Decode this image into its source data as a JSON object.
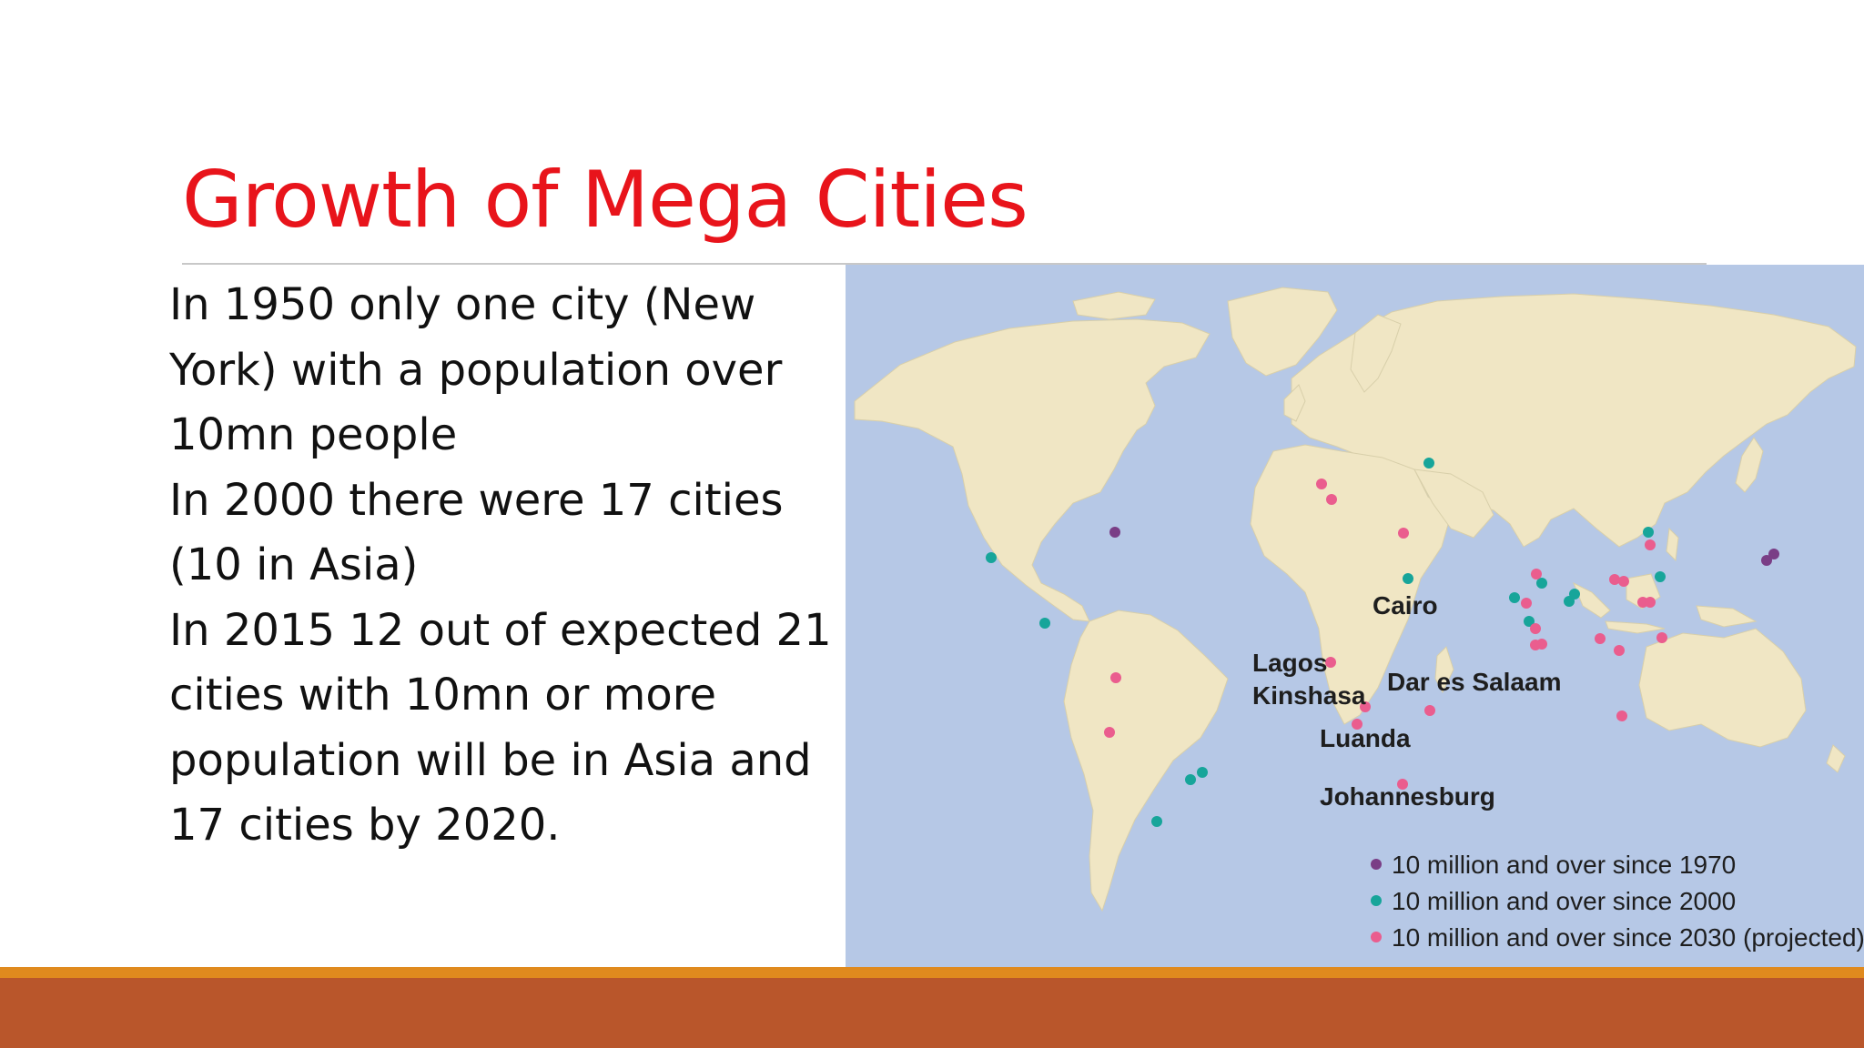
{
  "slide": {
    "title": "Growth of Mega Cities",
    "paragraphs": [
      "In 1950 only one city (New York) with a population over 10mn people",
      "In 2000 there were 17 cities (10 in Asia)",
      "In 2015 12 out of expected 21 cities with 10mn or more population will be in Asia and 17 cities by 2020."
    ]
  },
  "map": {
    "labels": {
      "cairo": "Cairo",
      "lagos": "Lagos",
      "kinshasa": "Kinshasa",
      "dar_es_salaam": "Dar es Salaam",
      "luanda": "Luanda",
      "johannesburg": "Johannesburg"
    },
    "legend": [
      {
        "label": "10 million and over since 1970",
        "color": "#7a3e86"
      },
      {
        "label": "10 million and over since 2000",
        "color": "#17a59a"
      },
      {
        "label": "10 million and over since 2030 (projected)",
        "color": "#ea5d8e"
      }
    ],
    "colors": {
      "ocean": "#b6c8e6",
      "land": "#f0e6c4"
    }
  }
}
